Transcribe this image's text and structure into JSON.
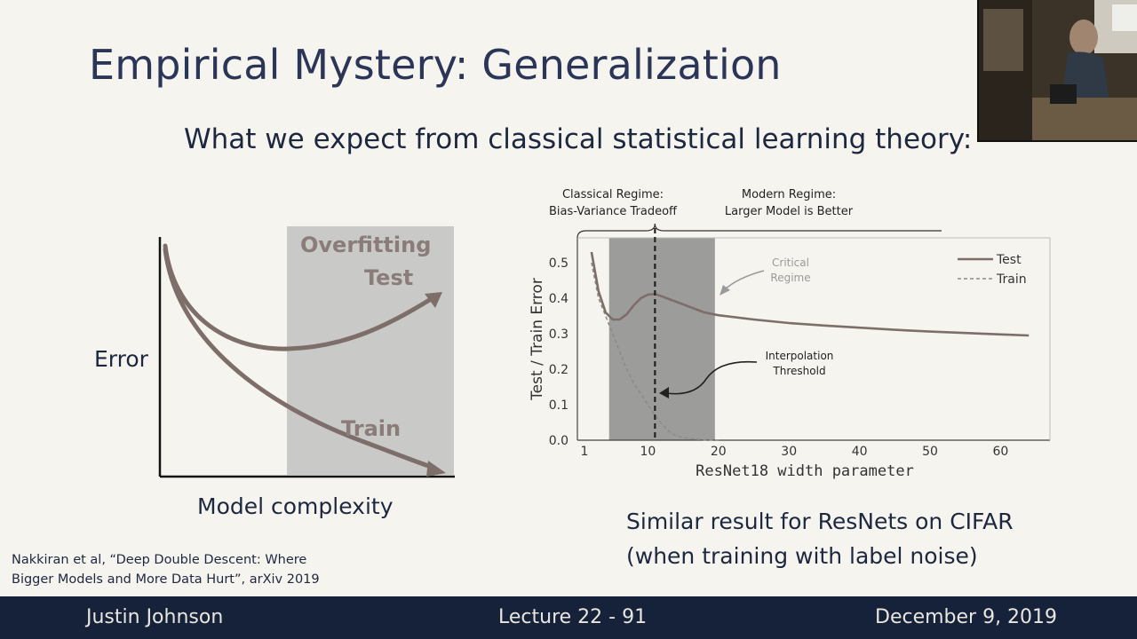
{
  "slide": {
    "title": "Empirical Mystery: Generalization",
    "subtitle": "What we expect from classical statistical learning theory:"
  },
  "classical_sketch": {
    "ylabel": "Error",
    "xlabel": "Model complexity",
    "overfitting_label": "Overfitting",
    "test_label": "Test",
    "train_label": "Train",
    "curve_color": "#7e6e6a",
    "shade_color": "#c9c9c7"
  },
  "chart_data": {
    "type": "line",
    "header_left_line1": "Classical Regime:",
    "header_left_line2": "Bias-Variance Tradeoff",
    "header_right_line1": "Modern Regime:",
    "header_right_line2": "Larger Model is Better",
    "annotation_critical_line1": "Critical",
    "annotation_critical_line2": "Regime",
    "annotation_interp_line1": "Interpolation",
    "annotation_interp_line2": "Threshold",
    "xlabel": "ResNet18 width parameter",
    "ylabel": "Test / Train Error",
    "xlim": [
      0,
      67
    ],
    "ylim": [
      0,
      0.57
    ],
    "xticks": [
      1,
      10,
      20,
      30,
      40,
      50,
      60
    ],
    "yticks": [
      0.0,
      0.1,
      0.2,
      0.3,
      0.4,
      0.5
    ],
    "critical_regime": [
      4.5,
      19.5
    ],
    "interpolation_threshold": 11,
    "legend_position": "top-right",
    "series": [
      {
        "name": "Test",
        "style": "solid",
        "x": [
          2,
          3,
          4,
          5,
          6,
          7,
          8,
          9,
          10,
          11,
          12,
          14,
          16,
          18,
          20,
          25,
          30,
          35,
          40,
          45,
          50,
          55,
          60,
          64
        ],
        "y": [
          0.53,
          0.42,
          0.36,
          0.34,
          0.34,
          0.355,
          0.38,
          0.4,
          0.41,
          0.412,
          0.405,
          0.39,
          0.375,
          0.36,
          0.352,
          0.34,
          0.33,
          0.323,
          0.317,
          0.311,
          0.306,
          0.302,
          0.298,
          0.295
        ]
      },
      {
        "name": "Train",
        "style": "dashed",
        "x": [
          2,
          3,
          4,
          5,
          6,
          7,
          8,
          9,
          10,
          11,
          12,
          13,
          14,
          16,
          18,
          20
        ],
        "y": [
          0.5,
          0.4,
          0.35,
          0.3,
          0.25,
          0.2,
          0.16,
          0.13,
          0.1,
          0.07,
          0.045,
          0.025,
          0.012,
          0.004,
          0.001,
          0.0
        ]
      }
    ],
    "colors": {
      "test": "#7e6e6a",
      "train": "#8f8a86",
      "shade": "#8c8c8c",
      "axis": "#444444"
    }
  },
  "captions": {
    "line1": "Similar result for ResNets on CIFAR",
    "line2": "(when training with label noise)"
  },
  "citation": {
    "line1": "Nakkiran et al, “Deep Double Descent: Where",
    "line2": "Bigger Models and More Data Hurt”, arXiv 2019"
  },
  "footer": {
    "author": "Justin Johnson",
    "lecture": "Lecture 22 - 91",
    "date": "December 9, 2019",
    "bar_color": "#16213a"
  }
}
